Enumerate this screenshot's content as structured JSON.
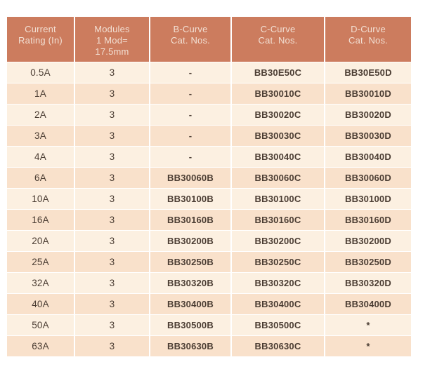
{
  "page": {
    "background": "#ffffff"
  },
  "colors": {
    "header_bg": "#cc7c5e",
    "header_text": "#f2dfd3",
    "row_light_bg": "#fcf0e1",
    "row_dark_bg": "#f9e1cb",
    "body_text": "#4b3d33",
    "divider": "#ffffff"
  },
  "table": {
    "columns": [
      {
        "label": "Current\nRating (In)"
      },
      {
        "label": "Modules\n1 Mod=\n17.5mm"
      },
      {
        "label": "B-Curve\nCat. Nos."
      },
      {
        "label": "C-Curve\nCat. Nos."
      },
      {
        "label": "D-Curve\nCat. Nos."
      }
    ],
    "rows": [
      [
        "0.5A",
        "3",
        "-",
        "BB30E50C",
        "BB30E50D"
      ],
      [
        "1A",
        "3",
        "-",
        "BB30010C",
        "BB30010D"
      ],
      [
        "2A",
        "3",
        "-",
        "BB30020C",
        "BB30020D"
      ],
      [
        "3A",
        "3",
        "-",
        "BB30030C",
        "BB30030D"
      ],
      [
        "4A",
        "3",
        "-",
        "BB30040C",
        "BB30040D"
      ],
      [
        "6A",
        "3",
        "BB30060B",
        "BB30060C",
        "BB30060D"
      ],
      [
        "10A",
        "3",
        "BB30100B",
        "BB30100C",
        "BB30100D"
      ],
      [
        "16A",
        "3",
        "BB30160B",
        "BB30160C",
        "BB30160D"
      ],
      [
        "20A",
        "3",
        "BB30200B",
        "BB30200C",
        "BB30200D"
      ],
      [
        "25A",
        "3",
        "BB30250B",
        "BB30250C",
        "BB30250D"
      ],
      [
        "32A",
        "3",
        "BB30320B",
        "BB30320C",
        "BB30320D"
      ],
      [
        "40A",
        "3",
        "BB30400B",
        "BB30400C",
        "BB30400D"
      ],
      [
        "50A",
        "3",
        "BB30500B",
        "BB30500C",
        "*"
      ],
      [
        "63A",
        "3",
        "BB30630B",
        "BB30630C",
        "*"
      ]
    ]
  }
}
